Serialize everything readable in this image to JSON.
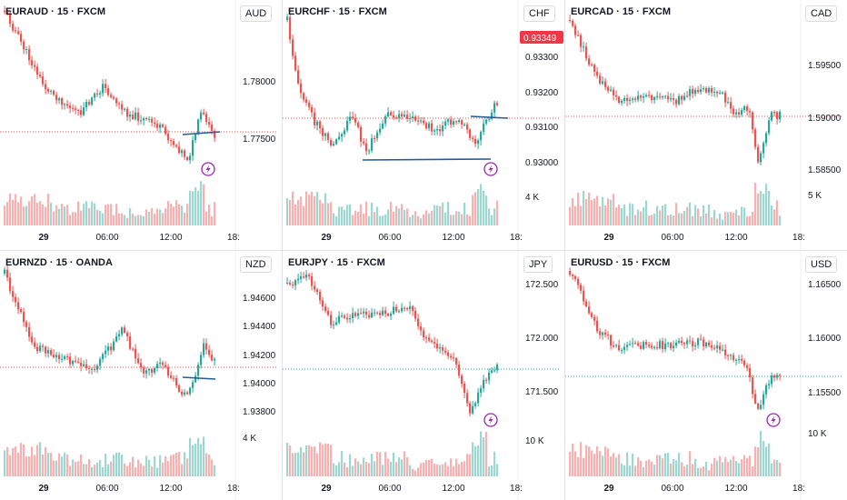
{
  "colors": {
    "up": "#26a69a",
    "down": "#ef5350",
    "price_line_down": "#ef5350",
    "price_line_up": "#26a69a",
    "trendline": "#1f5c99",
    "badge_bg": "#f23645",
    "flash_icon": "#9c27b0",
    "axis_text": "#131722"
  },
  "icons": {
    "flash": "lightning-bolt-icon"
  },
  "panels": [
    {
      "id": "euraud",
      "title": "EURAUD · 15 · FXCM",
      "currency": "AUD",
      "price_ticks": [
        "1.78000",
        "1.77500"
      ],
      "volume_tick": "",
      "time_ticks": [
        "29",
        "06:00",
        "12:00",
        "18:"
      ],
      "last_price_badge": "",
      "has_flash_icon": true
    },
    {
      "id": "eurchf",
      "title": "EURCHF · 15 · FXCM",
      "currency": "CHF",
      "price_ticks": [
        "0.93300",
        "0.93200",
        "0.93100",
        "0.93000"
      ],
      "volume_tick": "4 K",
      "time_ticks": [
        "29",
        "06:00",
        "12:00",
        "18:"
      ],
      "last_price_badge": "0.93349",
      "has_flash_icon": true
    },
    {
      "id": "eurcad",
      "title": "EURCAD · 15 · FXCM",
      "currency": "CAD",
      "price_ticks": [
        "1.59500",
        "1.59000",
        "1.58500"
      ],
      "volume_tick": "5 K",
      "time_ticks": [
        "29",
        "06:00",
        "12:00",
        "18:"
      ],
      "last_price_badge": "",
      "has_flash_icon": false
    },
    {
      "id": "eurnzd",
      "title": "EURNZD · 15 · OANDA",
      "currency": "NZD",
      "price_ticks": [
        "1.94600",
        "1.94400",
        "1.94200",
        "1.94000",
        "1.93800"
      ],
      "volume_tick": "4 K",
      "time_ticks": [
        "29",
        "06:00",
        "12:00",
        "18:"
      ],
      "last_price_badge": "",
      "has_flash_icon": false
    },
    {
      "id": "eurjpy",
      "title": "EURJPY · 15 · FXCM",
      "currency": "JPY",
      "price_ticks": [
        "172.500",
        "172.000",
        "171.500"
      ],
      "volume_tick": "10 K",
      "time_ticks": [
        "29",
        "06:00",
        "12:00",
        "18:"
      ],
      "last_price_badge": "",
      "has_flash_icon": true
    },
    {
      "id": "eurusd",
      "title": "EURUSD · 15 · FXCM",
      "currency": "USD",
      "price_ticks": [
        "1.16500",
        "1.16000",
        "1.15500"
      ],
      "volume_tick": "10 K",
      "time_ticks": [
        "29",
        "06:00",
        "12:00",
        "18:"
      ],
      "last_price_badge": "",
      "has_flash_icon": true
    }
  ]
}
